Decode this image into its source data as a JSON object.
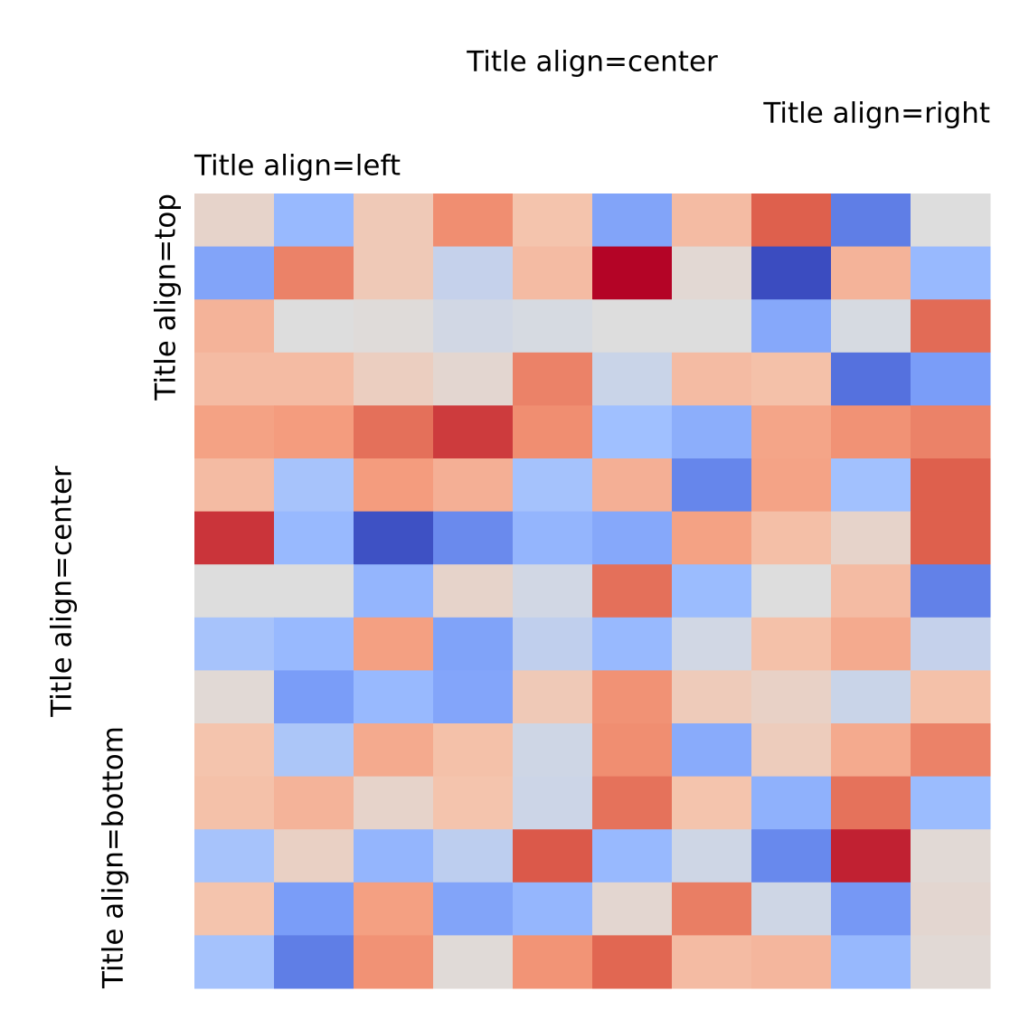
{
  "chart_data": {
    "type": "heatmap",
    "colormap": "coolwarm",
    "vlim": [
      -1,
      1
    ],
    "titles": {
      "center": "Title align=center",
      "right": "Title align=right",
      "left": "Title align=left"
    },
    "ylabels": {
      "top": "Title align=top",
      "center": "Title align=center",
      "bottom": "Title align=bottom"
    },
    "values": [
      [
        0.1,
        -0.3,
        0.2,
        0.55,
        0.25,
        -0.45,
        0.3,
        0.75,
        -0.7,
        0
      ],
      [
        -0.45,
        0.6,
        0.2,
        -0.1,
        0.3,
        1,
        0.05,
        -1,
        0.35,
        -0.3
      ],
      [
        0.35,
        0,
        0.02,
        -0.05,
        -0.03,
        0,
        0,
        -0.42,
        -0.03,
        0.7
      ],
      [
        0.3,
        0.3,
        0.15,
        0.07,
        0.6,
        -0.08,
        0.3,
        0.27,
        -0.78,
        -0.5
      ],
      [
        0.45,
        0.48,
        0.68,
        0.85,
        0.55,
        -0.25,
        -0.38,
        0.43,
        0.53,
        0.6
      ],
      [
        0.3,
        -0.22,
        0.48,
        0.37,
        -0.23,
        0.37,
        -0.65,
        0.44,
        -0.24,
        0.75
      ],
      [
        0.87,
        -0.3,
        -0.97,
        -0.62,
        -0.33,
        -0.42,
        0.45,
        0.28,
        0.1,
        0.75
      ],
      [
        0,
        0,
        -0.33,
        0.1,
        -0.05,
        0.68,
        -0.28,
        0,
        0.3,
        -0.68
      ],
      [
        -0.22,
        -0.3,
        0.46,
        -0.46,
        -0.12,
        -0.3,
        -0.05,
        0.27,
        0.4,
        -0.1
      ],
      [
        0.04,
        -0.5,
        -0.3,
        -0.44,
        0.2,
        0.53,
        0.18,
        0.12,
        -0.08,
        0.27
      ],
      [
        0.25,
        -0.2,
        0.4,
        0.27,
        -0.06,
        0.55,
        -0.4,
        0.17,
        0.4,
        0.6
      ],
      [
        0.27,
        0.35,
        0.1,
        0.25,
        -0.07,
        0.67,
        0.25,
        -0.36,
        0.67,
        -0.28
      ],
      [
        -0.22,
        0.13,
        -0.33,
        -0.13,
        0.77,
        -0.3,
        -0.06,
        -0.63,
        0.92,
        0.04
      ],
      [
        0.25,
        -0.5,
        0.46,
        -0.45,
        -0.32,
        0.07,
        0.62,
        -0.06,
        -0.53,
        0.07
      ],
      [
        -0.23,
        -0.7,
        0.53,
        0.03,
        0.52,
        0.72,
        0.3,
        0.33,
        -0.31,
        0.04
      ]
    ]
  }
}
